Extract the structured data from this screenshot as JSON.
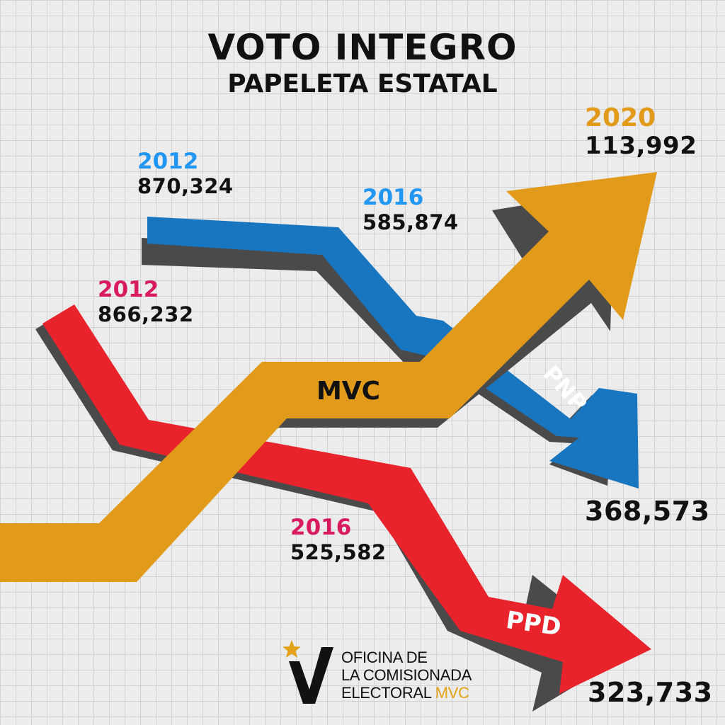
{
  "title": "VOTO INTEGRO",
  "subtitle": "PAPELETA ESTATAL",
  "colors": {
    "PNP": "#1876c0",
    "PPD": "#e8232c",
    "MVC": "#e19a1a",
    "shadow": "#4a4a4a",
    "year_pnp": "#2196f3",
    "year_ppd": "#d81b60",
    "year_mvc": "#e19a1a"
  },
  "chart_data": {
    "type": "line",
    "x": [
      "2012",
      "2016",
      "2020"
    ],
    "series": [
      {
        "name": "PNP",
        "values": [
          870324,
          585874,
          368573
        ]
      },
      {
        "name": "PPD",
        "values": [
          866232,
          525582,
          323733
        ]
      },
      {
        "name": "MVC",
        "values": [
          null,
          null,
          113992
        ]
      }
    ]
  },
  "labels": {
    "pnp_2012": {
      "year": "2012",
      "value": "870,324"
    },
    "pnp_2016": {
      "year": "2016",
      "value": "585,874"
    },
    "pnp_2020": {
      "value": "368,573"
    },
    "ppd_2012": {
      "year": "2012",
      "value": "866,232"
    },
    "ppd_2016": {
      "year": "2016",
      "value": "525,582"
    },
    "ppd_2020": {
      "value": "323,733"
    },
    "mvc_2020": {
      "year": "2020",
      "value": "113,992"
    }
  },
  "logo": {
    "line1": "OFICINA DE",
    "line2": "LA COMISIONADA",
    "line3": "ELECTORAL",
    "line3_accent": "MVC"
  }
}
